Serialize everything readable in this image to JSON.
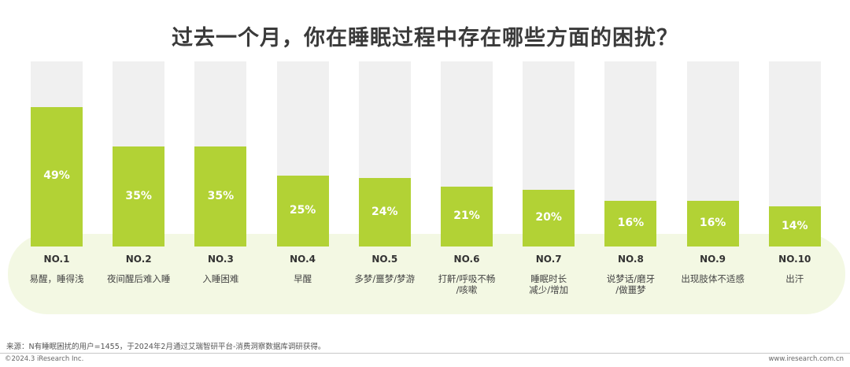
{
  "title": "过去一个月，你在睡眠过程中存在哪些方面的困扰？",
  "chart_data": {
    "type": "bar",
    "title": "过去一个月，你在睡眠过程中存在哪些方面的困扰？",
    "ylim": [
      0,
      65
    ],
    "grid": false,
    "legend": "none",
    "categories": [
      {
        "rank": "NO.1",
        "label": "易醒，睡得浅",
        "value": 49,
        "value_label": "49%"
      },
      {
        "rank": "NO.2",
        "label": "夜间醒后难入睡",
        "value": 35,
        "value_label": "35%"
      },
      {
        "rank": "NO.3",
        "label": "入睡困难",
        "value": 35,
        "value_label": "35%"
      },
      {
        "rank": "NO.4",
        "label": "早醒",
        "value": 25,
        "value_label": "25%"
      },
      {
        "rank": "NO.5",
        "label": "多梦/噩梦/梦游",
        "value": 24,
        "value_label": "24%"
      },
      {
        "rank": "NO.6",
        "label": "打鼾/呼吸不畅\n/咳嗽",
        "value": 21,
        "value_label": "21%"
      },
      {
        "rank": "NO.7",
        "label": "睡眠时长\n减少/增加",
        "value": 20,
        "value_label": "20%"
      },
      {
        "rank": "NO.8",
        "label": "说梦话/磨牙\n/做噩梦",
        "value": 16,
        "value_label": "16%"
      },
      {
        "rank": "NO.9",
        "label": "出现肢体不适感",
        "value": 16,
        "value_label": "16%"
      },
      {
        "rank": "NO.10",
        "label": "出汗",
        "value": 14,
        "value_label": "14%"
      }
    ],
    "colors": {
      "bar": "#b2d235",
      "track": "#f0f0f0",
      "band": "#f3f8e3"
    }
  },
  "footer": {
    "source": "来源：N有睡眠困扰的用户=1455，于2024年2月通过艾瑞智研平台-消费洞察数据库调研获得。",
    "copyright": "©2024.3 iResearch Inc.",
    "website": "www.iresearch.com.cn"
  }
}
